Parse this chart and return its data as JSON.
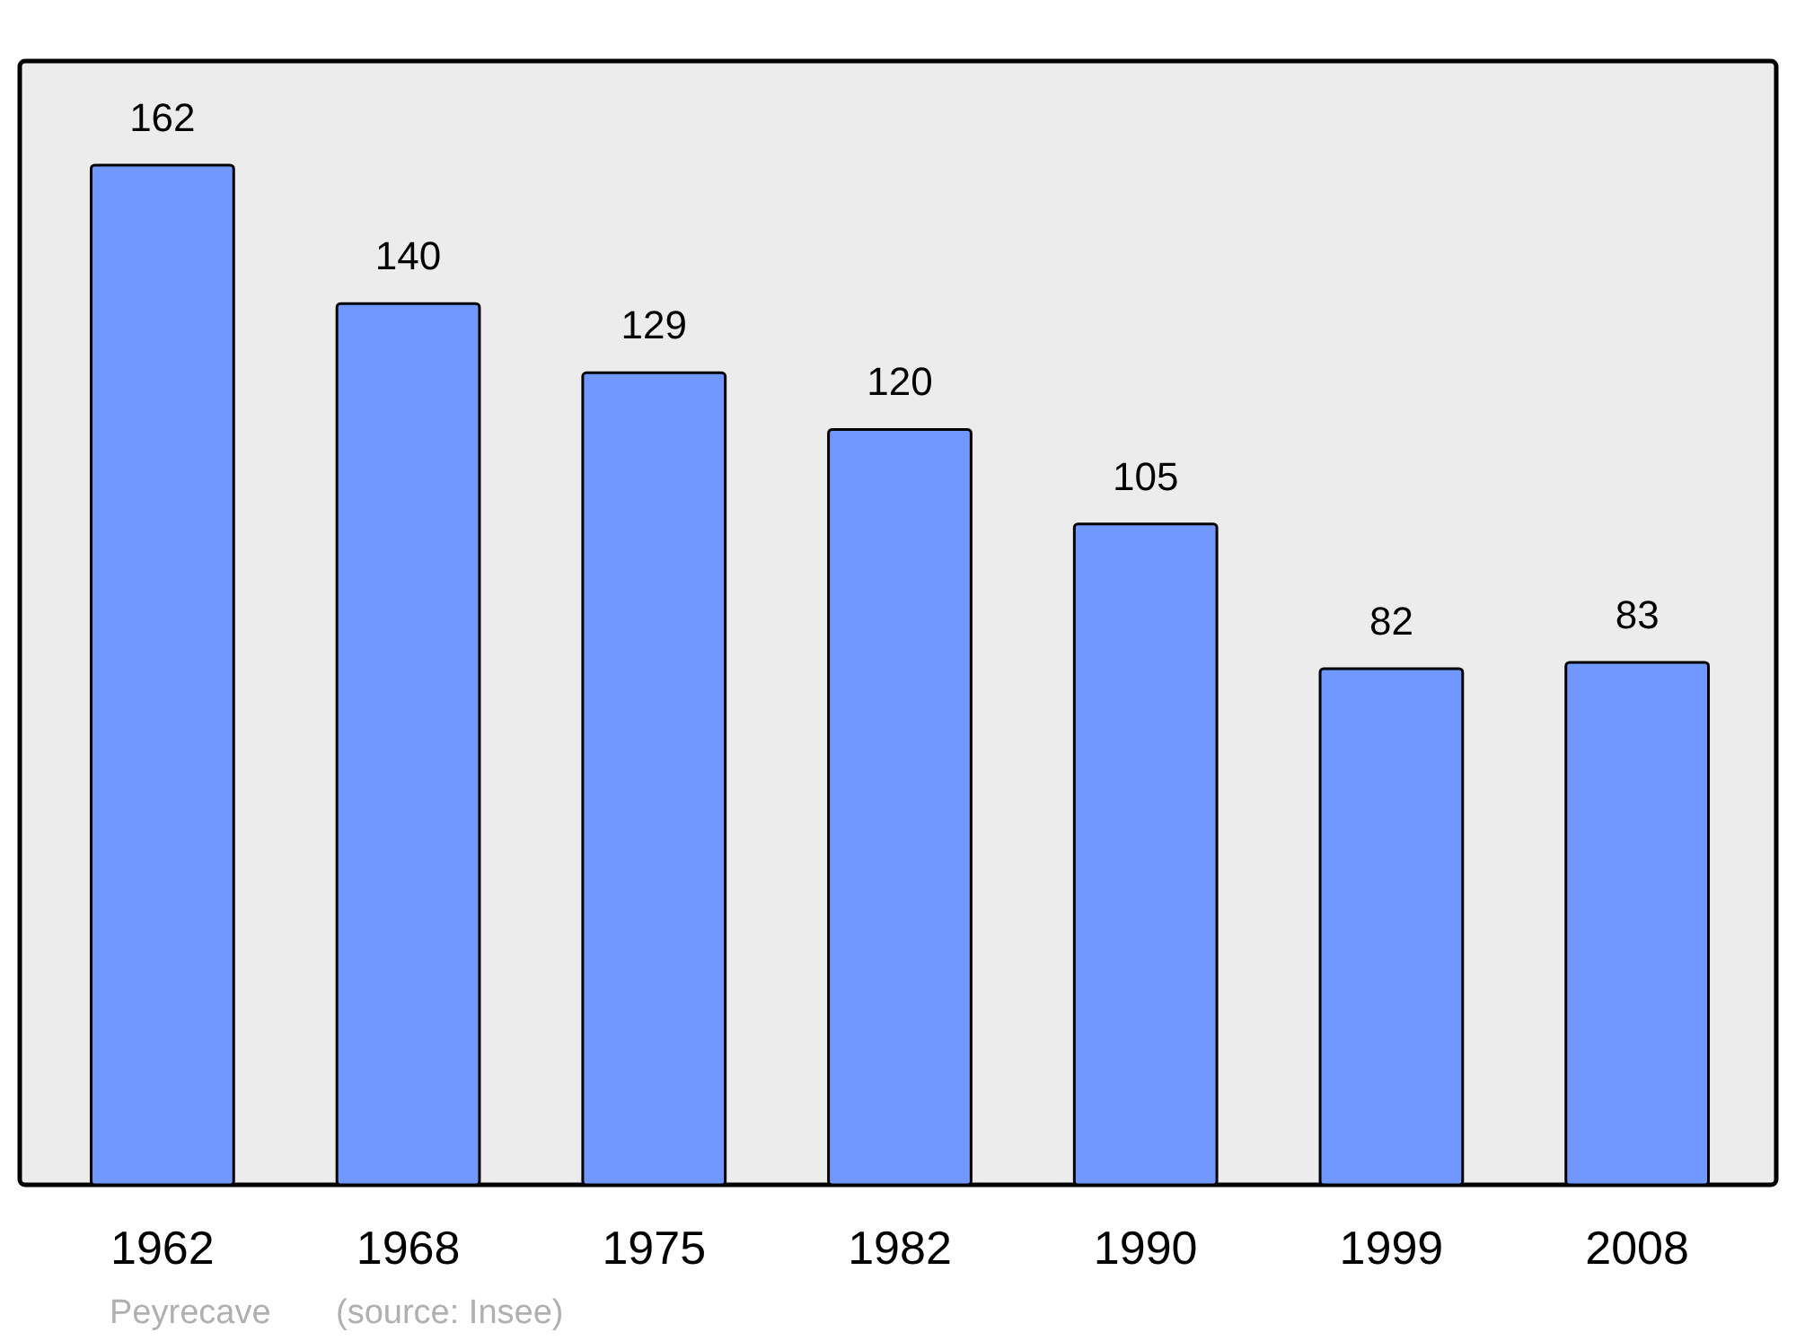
{
  "chart_data": {
    "type": "bar",
    "categories": [
      "1962",
      "1968",
      "1975",
      "1982",
      "1990",
      "1999",
      "2008"
    ],
    "values": [
      162,
      140,
      129,
      120,
      105,
      82,
      83
    ],
    "color": "#7098ff",
    "data_labels": true,
    "annotations": [
      "Peyrecave",
      "(source: Insee)"
    ]
  }
}
